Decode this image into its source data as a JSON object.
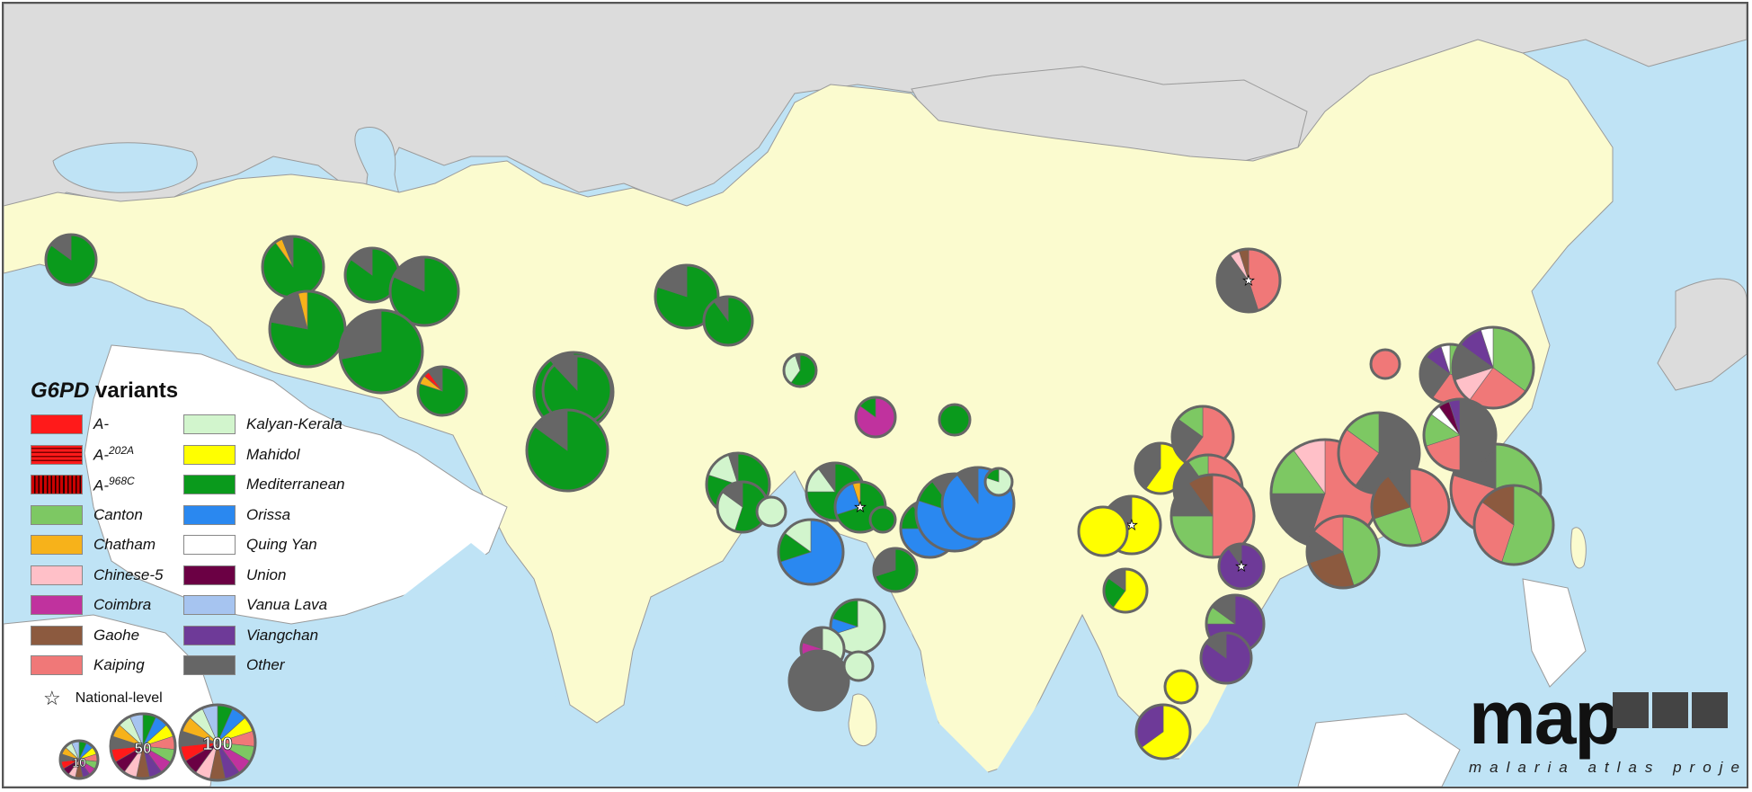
{
  "legend": {
    "title_italic": "G6PD",
    "title_rest": " variants",
    "items": [
      {
        "key": "a_minus",
        "label": "A-",
        "sup": "",
        "color": "#ff1a1a",
        "pattern": "solid"
      },
      {
        "key": "a_202a",
        "label": "A-",
        "sup": "202A",
        "color": "#ff1a1a",
        "pattern": "hstripe"
      },
      {
        "key": "a_968c",
        "label": "A-",
        "sup": "968C",
        "color": "#cc0000",
        "pattern": "vstripe"
      },
      {
        "key": "canton",
        "label": "Canton",
        "sup": "",
        "color": "#7dc863",
        "pattern": "solid"
      },
      {
        "key": "chatham",
        "label": "Chatham",
        "sup": "",
        "color": "#f7b21a",
        "pattern": "solid"
      },
      {
        "key": "chinese5",
        "label": "Chinese-5",
        "sup": "",
        "color": "#ffc0c8",
        "pattern": "solid"
      },
      {
        "key": "coimbra",
        "label": "Coimbra",
        "sup": "",
        "color": "#c0329e",
        "pattern": "solid"
      },
      {
        "key": "gaohe",
        "label": "Gaohe",
        "sup": "",
        "color": "#8c5a3f",
        "pattern": "solid"
      },
      {
        "key": "kaiping",
        "label": "Kaiping",
        "sup": "",
        "color": "#f07878",
        "pattern": "solid"
      },
      {
        "key": "kalyan",
        "label": "Kalyan-Kerala",
        "sup": "",
        "color": "#d2f5cd",
        "pattern": "solid"
      },
      {
        "key": "mahidol",
        "label": "Mahidol",
        "sup": "",
        "color": "#ffff00",
        "pattern": "solid"
      },
      {
        "key": "mediterranean",
        "label": "Mediterranean",
        "sup": "",
        "color": "#0a9a1c",
        "pattern": "solid"
      },
      {
        "key": "orissa",
        "label": "Orissa",
        "sup": "",
        "color": "#2a88f0",
        "pattern": "solid"
      },
      {
        "key": "quingyan",
        "label": "Quing Yan",
        "sup": "",
        "color": "#ffffff",
        "pattern": "solid"
      },
      {
        "key": "union",
        "label": "Union",
        "sup": "",
        "color": "#6b0044",
        "pattern": "solid"
      },
      {
        "key": "vanualava",
        "label": "Vanua Lava",
        "sup": "",
        "color": "#a6c4f0",
        "pattern": "solid"
      },
      {
        "key": "viangchan",
        "label": "Viangchan",
        "sup": "",
        "color": "#6e3a98",
        "pattern": "solid"
      },
      {
        "key": "other",
        "label": "Other",
        "sup": "",
        "color": "#666666",
        "pattern": "solid"
      }
    ],
    "national_level_label": "National-level",
    "size_legend": [
      "10",
      "50",
      "100"
    ]
  },
  "logo": {
    "word": "map",
    "subtitle": "malaria atlas project"
  },
  "pies": [
    {
      "slices": [
        [
          "mediterranean",
          0.85
        ],
        [
          "other",
          0.15
        ]
      ],
      "star": false
    },
    {
      "slices": [
        [
          "mediterranean",
          0.9
        ],
        [
          "chatham",
          0.04
        ],
        [
          "other",
          0.06
        ]
      ],
      "star": false
    },
    {
      "slices": [
        [
          "mediterranean",
          0.85
        ],
        [
          "other",
          0.15
        ]
      ],
      "star": false
    },
    {
      "slices": [
        [
          "mediterranean",
          0.82
        ],
        [
          "other",
          0.18
        ]
      ],
      "star": false
    },
    {
      "slices": [
        [
          "mediterranean",
          0.78
        ],
        [
          "other",
          0.18
        ],
        [
          "chatham",
          0.04
        ]
      ],
      "star": false
    },
    {
      "slices": [
        [
          "mediterranean",
          0.72
        ],
        [
          "other",
          0.28
        ]
      ],
      "star": false
    },
    {
      "slices": [
        [
          "mediterranean",
          0.8
        ],
        [
          "chatham",
          0.06
        ],
        [
          "a_minus",
          0.04
        ],
        [
          "other",
          0.1
        ]
      ],
      "star": false
    },
    {
      "slices": [
        [
          "mediterranean",
          0.9
        ],
        [
          "other",
          0.1
        ]
      ],
      "star": false
    },
    {
      "slices": [
        [
          "mediterranean",
          0.8
        ],
        [
          "other",
          0.2
        ]
      ],
      "star": false
    },
    {
      "slices": [
        [
          "mediterranean",
          0.9
        ],
        [
          "other",
          0.1
        ]
      ],
      "star": false
    },
    {
      "slices": [
        [
          "mediterranean",
          0.88
        ],
        [
          "other",
          0.12
        ]
      ],
      "star": false
    },
    {
      "slices": [
        [
          "mediterranean",
          0.85
        ],
        [
          "other",
          0.15
        ]
      ],
      "star": false
    },
    {
      "slices": [
        [
          "mediterranean",
          0.6
        ],
        [
          "kalyan",
          0.35
        ],
        [
          "other",
          0.05
        ]
      ],
      "star": false
    },
    {
      "slices": [
        [
          "coimbra",
          0.85
        ],
        [
          "mediterranean",
          0.15
        ]
      ],
      "star": false
    },
    {
      "slices": [
        [
          "mediterranean",
          1.0
        ]
      ],
      "star": false
    },
    {
      "slices": [
        [
          "mediterranean",
          0.8
        ],
        [
          "kalyan",
          0.15
        ],
        [
          "other",
          0.05
        ]
      ],
      "star": false
    },
    {
      "slices": [
        [
          "mediterranean",
          0.55
        ],
        [
          "kalyan",
          0.3
        ],
        [
          "other",
          0.15
        ]
      ],
      "star": false
    },
    {
      "slices": [
        [
          "kalyan",
          1.0
        ]
      ],
      "star": false
    },
    {
      "slices": [
        [
          "mediterranean",
          0.75
        ],
        [
          "kalyan",
          0.15
        ],
        [
          "other",
          0.1
        ]
      ],
      "star": false
    },
    {
      "slices": [
        [
          "mediterranean",
          0.7
        ],
        [
          "orissa",
          0.25
        ],
        [
          "chatham",
          0.05
        ]
      ],
      "star": true
    },
    {
      "slices": [
        [
          "mediterranean",
          1.0
        ]
      ],
      "star": false
    },
    {
      "slices": [
        [
          "orissa",
          0.7
        ],
        [
          "mediterranean",
          0.15
        ],
        [
          "kalyan",
          0.15
        ]
      ],
      "star": false
    },
    {
      "slices": [
        [
          "mediterranean",
          0.7
        ],
        [
          "other",
          0.3
        ]
      ],
      "star": false
    },
    {
      "slices": [
        [
          "orissa",
          0.75
        ],
        [
          "mediterranean",
          0.15
        ],
        [
          "other",
          0.1
        ]
      ],
      "star": false
    },
    {
      "slices": [
        [
          "orissa",
          0.8
        ],
        [
          "mediterranean",
          0.1
        ],
        [
          "other",
          0.1
        ]
      ],
      "star": false
    },
    {
      "slices": [
        [
          "orissa",
          0.9
        ],
        [
          "other",
          0.1
        ]
      ],
      "star": false
    },
    {
      "slices": [
        [
          "kalyan",
          0.8
        ],
        [
          "mediterranean",
          0.2
        ]
      ],
      "star": false
    },
    {
      "slices": [
        [
          "kalyan",
          0.7
        ],
        [
          "orissa",
          0.1
        ],
        [
          "mediterranean",
          0.2
        ]
      ],
      "star": false
    },
    {
      "slices": [
        [
          "kalyan",
          0.7
        ],
        [
          "coimbra",
          0.1
        ],
        [
          "other",
          0.2
        ]
      ],
      "star": false
    },
    {
      "slices": [
        [
          "other",
          1.0
        ]
      ],
      "star": false
    },
    {
      "slices": [
        [
          "kalyan",
          1.0
        ]
      ],
      "star": false
    },
    {
      "slices": [
        [
          "kaiping",
          0.45
        ],
        [
          "other",
          0.45
        ],
        [
          "chinese5",
          0.05
        ],
        [
          "gaohe",
          0.05
        ]
      ],
      "star": true
    },
    {
      "slices": [
        [
          "kaiping",
          1.0
        ]
      ],
      "star": false
    },
    {
      "slices": [
        [
          "canton",
          0.3
        ],
        [
          "kaiping",
          0.3
        ],
        [
          "other",
          0.25
        ],
        [
          "viangchan",
          0.1
        ],
        [
          "quingyan",
          0.05
        ]
      ],
      "star": false
    },
    {
      "slices": [
        [
          "canton",
          0.35
        ],
        [
          "kaiping",
          0.25
        ],
        [
          "chinese5",
          0.1
        ],
        [
          "other",
          0.15
        ],
        [
          "viangchan",
          0.1
        ],
        [
          "quingyan",
          0.05
        ]
      ],
      "star": false
    },
    {
      "slices": [
        [
          "mahidol",
          0.6
        ],
        [
          "other",
          0.4
        ]
      ],
      "star": false
    },
    {
      "slices": [
        [
          "mahidol",
          0.7
        ],
        [
          "union",
          0.15
        ],
        [
          "other",
          0.15
        ]
      ],
      "star": true
    },
    {
      "slices": [
        [
          "mahidol",
          1.0
        ]
      ],
      "star": false
    },
    {
      "slices": [
        [
          "mahidol",
          0.6
        ],
        [
          "mediterranean",
          0.25
        ],
        [
          "other",
          0.15
        ]
      ],
      "star": false
    },
    {
      "slices": [
        [
          "kaiping",
          0.6
        ],
        [
          "other",
          0.25
        ],
        [
          "canton",
          0.15
        ]
      ],
      "star": false
    },
    {
      "slices": [
        [
          "kaiping",
          0.7
        ],
        [
          "other",
          0.2
        ],
        [
          "canton",
          0.1
        ]
      ],
      "star": false
    },
    {
      "slices": [
        [
          "kaiping",
          0.5
        ],
        [
          "canton",
          0.25
        ],
        [
          "other",
          0.15
        ],
        [
          "gaohe",
          0.1
        ]
      ],
      "star": false
    },
    {
      "slices": [
        [
          "kaiping",
          0.55
        ],
        [
          "other",
          0.2
        ],
        [
          "canton",
          0.15
        ],
        [
          "chinese5",
          0.1
        ]
      ],
      "star": false
    },
    {
      "slices": [
        [
          "other",
          0.6
        ],
        [
          "kaiping",
          0.25
        ],
        [
          "canton",
          0.15
        ]
      ],
      "star": false
    },
    {
      "slices": [
        [
          "kaiping",
          0.45
        ],
        [
          "canton",
          0.25
        ],
        [
          "gaohe",
          0.2
        ],
        [
          "other",
          0.1
        ]
      ],
      "star": false
    },
    {
      "slices": [
        [
          "canton",
          0.55
        ],
        [
          "kaiping",
          0.25
        ],
        [
          "other",
          0.2
        ]
      ],
      "star": false
    },
    {
      "slices": [
        [
          "viangchan",
          0.9
        ],
        [
          "other",
          0.1
        ]
      ],
      "star": true
    },
    {
      "slices": [
        [
          "viangchan",
          0.75
        ],
        [
          "canton",
          0.1
        ],
        [
          "other",
          0.15
        ]
      ],
      "star": false
    },
    {
      "slices": [
        [
          "viangchan",
          0.85
        ],
        [
          "other",
          0.15
        ]
      ],
      "star": false
    },
    {
      "slices": [
        [
          "mahidol",
          0.65
        ],
        [
          "viangchan",
          0.35
        ]
      ],
      "star": false
    },
    {
      "slices": [
        [
          "mahidol",
          1.0
        ]
      ],
      "star": false
    },
    {
      "slices": [
        [
          "canton",
          0.45
        ],
        [
          "gaohe",
          0.25
        ],
        [
          "other",
          0.15
        ],
        [
          "kaiping",
          0.15
        ]
      ],
      "star": false
    },
    {
      "slices": [
        [
          "other",
          0.5
        ],
        [
          "kaiping",
          0.2
        ],
        [
          "canton",
          0.15
        ],
        [
          "quingyan",
          0.05
        ],
        [
          "union",
          0.05
        ],
        [
          "viangchan",
          0.05
        ]
      ],
      "star": false
    },
    {
      "slices": [
        [
          "canton",
          0.55
        ],
        [
          "kaiping",
          0.3
        ],
        [
          "gaohe",
          0.15
        ]
      ],
      "star": false
    }
  ]
}
